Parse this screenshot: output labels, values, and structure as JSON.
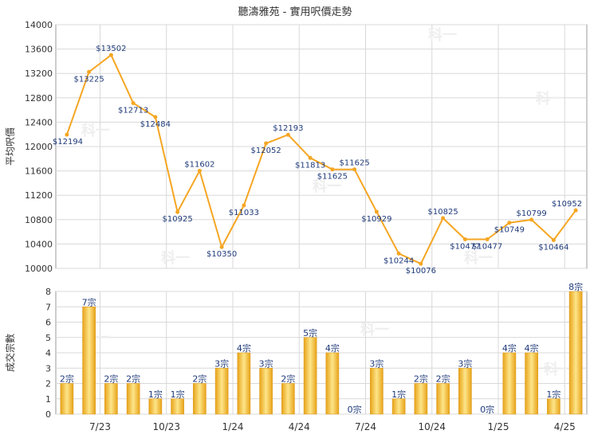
{
  "title": "聽濤雅苑 - 實用呎價走勢",
  "watermark_text": "科一",
  "colors": {
    "line": "#f5a623",
    "point": "#f5a623",
    "bar_light": "#fde58a",
    "bar_dark": "#e8a318",
    "grid": "#d8d8d8",
    "axis_text": "#333333",
    "label_text": "#1f3a7a"
  },
  "chart_data": [
    {
      "type": "line",
      "ylabel": "平均呎價",
      "ylim": [
        10000,
        14000
      ],
      "yticks": [
        10000,
        10400,
        10800,
        11200,
        11600,
        12000,
        12400,
        12800,
        13200,
        13600,
        14000
      ],
      "grid": true,
      "series": [
        {
          "values": [
            12194,
            13225,
            13502,
            12713,
            12484,
            10925,
            11602,
            10350,
            11033,
            12052,
            12193,
            11813,
            11625,
            11625,
            10929,
            10244,
            10076,
            10825,
            10477,
            10477,
            10749,
            10799,
            10464,
            10952
          ],
          "labels": [
            "$12194",
            "$13225",
            "$13502",
            "$12713",
            "$12484",
            "$10925",
            "$11602",
            "$10350",
            "$11033",
            "$12052",
            "$12193",
            "$11813",
            "$11625",
            "$11625",
            "$10929",
            "$10244",
            "$10076",
            "$10825",
            "$10477",
            "$10477",
            "$10749",
            "$10799",
            "$10464",
            "$10952"
          ]
        }
      ]
    },
    {
      "type": "bar",
      "ylabel": "成交宗數",
      "ylim": [
        0,
        8
      ],
      "yticks": [
        0,
        1,
        2,
        3,
        4,
        5,
        6,
        7,
        8
      ],
      "grid": true,
      "x_tick_labels": [
        "7/23",
        "10/23",
        "1/24",
        "4/24",
        "7/24",
        "10/24",
        "1/25",
        "4/25"
      ],
      "x_tick_after_index": [
        1,
        4,
        7,
        10,
        13,
        16,
        19,
        22
      ],
      "values": [
        2,
        7,
        2,
        2,
        1,
        1,
        2,
        3,
        4,
        3,
        2,
        5,
        4,
        0,
        3,
        1,
        2,
        2,
        3,
        0,
        4,
        4,
        1,
        8
      ],
      "labels": [
        "2宗",
        "7宗",
        "2宗",
        "2宗",
        "1宗",
        "1宗",
        "2宗",
        "3宗",
        "4宗",
        "3宗",
        "2宗",
        "5宗",
        "4宗",
        "0宗",
        "3宗",
        "1宗",
        "2宗",
        "2宗",
        "3宗",
        "0宗",
        "4宗",
        "4宗",
        "1宗",
        "8宗"
      ]
    }
  ]
}
